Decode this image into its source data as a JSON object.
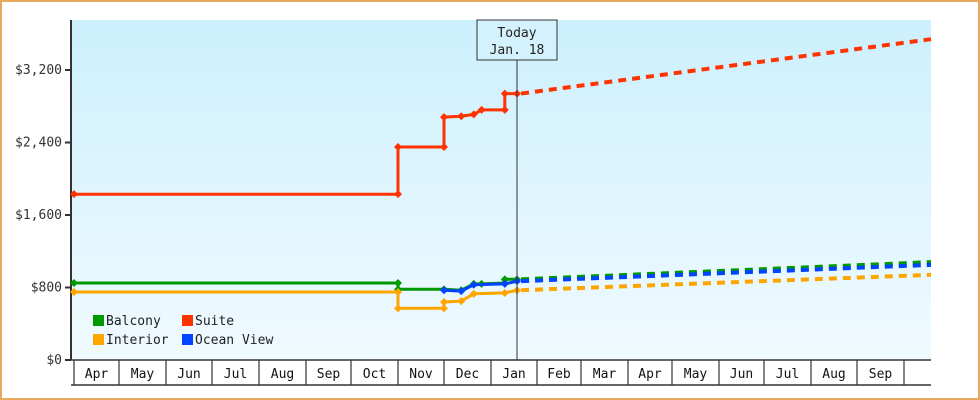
{
  "chart_data": {
    "type": "line",
    "title": "",
    "xlabel": "",
    "ylabel": "",
    "ylim": [
      0,
      3750
    ],
    "y_ticks": [
      {
        "value": 0,
        "label": "$0"
      },
      {
        "value": 800,
        "label": "$800"
      },
      {
        "value": 1600,
        "label": "$1,600"
      },
      {
        "value": 2400,
        "label": "$2,400"
      },
      {
        "value": 3200,
        "label": "$3,200"
      }
    ],
    "x_months": [
      "Apr",
      "May",
      "Jun",
      "Jul",
      "Aug",
      "Sep",
      "Oct",
      "Nov",
      "Dec",
      "Jan",
      "Feb",
      "Mar",
      "Apr",
      "May",
      "Jun",
      "Jul",
      "Aug",
      "Sep",
      ""
    ],
    "grid": false,
    "legend_position": "lower-left inside",
    "annotation": {
      "line1": "Today",
      "line2": "Jan. 18"
    },
    "series": [
      {
        "name": "Suite",
        "color": "#ff3300",
        "history": [
          [
            "Apr 1",
            1830
          ],
          [
            "Nov 1",
            1830
          ],
          [
            "Nov 1",
            2350
          ],
          [
            "Dec 1",
            2350
          ],
          [
            "Dec 1",
            2680
          ],
          [
            "Dec 12",
            2690
          ],
          [
            "Dec 20",
            2710
          ],
          [
            "Dec 25",
            2760
          ],
          [
            "Jan 10",
            2760
          ],
          [
            "Jan 10",
            2940
          ],
          [
            "Jan 18",
            2940
          ]
        ],
        "forecast": [
          [
            "Jan 18",
            2940
          ],
          [
            "Sep 30",
            3540
          ]
        ]
      },
      {
        "name": "Balcony",
        "color": "#009900",
        "history": [
          [
            "Apr 1",
            850
          ],
          [
            "Nov 1",
            850
          ],
          [
            "Nov 1",
            780
          ],
          [
            "Dec 1",
            780
          ],
          [
            "Dec 12",
            770
          ],
          [
            "Dec 20",
            840
          ],
          [
            "Dec 25",
            840
          ],
          [
            "Jan 10",
            850
          ],
          [
            "Jan 10",
            890
          ],
          [
            "Jan 18",
            890
          ]
        ],
        "forecast": [
          [
            "Jan 18",
            890
          ],
          [
            "Sep 30",
            1080
          ]
        ]
      },
      {
        "name": "Ocean View",
        "color": "#0044ff",
        "history": [
          [
            "Dec 1",
            770
          ],
          [
            "Dec 12",
            760
          ],
          [
            "Dec 20",
            830
          ],
          [
            "Jan 10",
            840
          ],
          [
            "Jan 18",
            870
          ]
        ],
        "forecast": [
          [
            "Jan 18",
            870
          ],
          [
            "Sep 30",
            1050
          ]
        ]
      },
      {
        "name": "Interior",
        "color": "#ffa500",
        "history": [
          [
            "Apr 1",
            750
          ],
          [
            "Nov 1",
            750
          ],
          [
            "Nov 1",
            570
          ],
          [
            "Dec 1",
            570
          ],
          [
            "Dec 1",
            640
          ],
          [
            "Dec 12",
            650
          ],
          [
            "Dec 20",
            730
          ],
          [
            "Jan 10",
            740
          ],
          [
            "Jan 18",
            770
          ]
        ],
        "forecast": [
          [
            "Jan 18",
            770
          ],
          [
            "Sep 30",
            940
          ]
        ]
      }
    ]
  },
  "legend": [
    {
      "label": "Balcony",
      "color": "#009900"
    },
    {
      "label": "Suite",
      "color": "#ff3300"
    },
    {
      "label": "Interior",
      "color": "#ffa500"
    },
    {
      "label": "Ocean View",
      "color": "#0044ff"
    }
  ],
  "today": {
    "line1": "Today",
    "line2": "Jan. 18"
  }
}
